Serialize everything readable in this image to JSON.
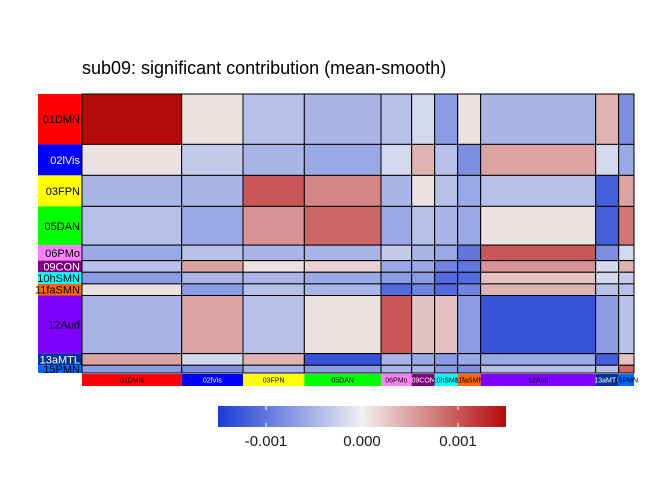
{
  "title": "sub09: significant contribution (mean-smooth)",
  "chart_data": {
    "type": "heatmap",
    "title": "sub09: significant contribution (mean-smooth)",
    "networks": [
      {
        "label": "01DMN",
        "color": "#FF0000",
        "size": 13,
        "text_color": "#000000"
      },
      {
        "label": "02lVis",
        "color": "#0000FF",
        "size": 8,
        "text_color": "#FFFFFF"
      },
      {
        "label": "03FPN",
        "color": "#FFFF00",
        "size": 8,
        "text_color": "#000000"
      },
      {
        "label": "05DAN",
        "color": "#00FF00",
        "size": 10,
        "text_color": "#000000"
      },
      {
        "label": "06PMo",
        "color": "#FF80FF",
        "size": 4,
        "text_color": "#000000"
      },
      {
        "label": "09CON",
        "color": "#800080",
        "size": 3,
        "text_color": "#FFFFFF"
      },
      {
        "label": "10hSMN",
        "color": "#00FFFF",
        "size": 3,
        "text_color": "#000000"
      },
      {
        "label": "11faSMN",
        "color": "#FF6600",
        "size": 3,
        "text_color": "#000000"
      },
      {
        "label": "12Aud",
        "color": "#8000FF",
        "size": 15,
        "text_color": "#000000"
      },
      {
        "label": "13aMTL",
        "color": "#003399",
        "size": 3,
        "text_color": "#FFFFFF"
      },
      {
        "label": "15PMN",
        "color": "#0066FF",
        "size": 2,
        "text_color": "#000000"
      }
    ],
    "column_labels": [
      "01DMN",
      "02lVis",
      "03FPN",
      "05DAN",
      "06PMo",
      "09CON",
      "10hSMN",
      "11faSMN",
      "12Aud",
      "13aMTL",
      "15PMN"
    ],
    "row_labels": [
      "01DMN",
      "02lVis",
      "03FPN",
      "05DAN",
      "06PMo",
      "09CON",
      "10hSMN",
      "11faSMN",
      "12Aud",
      "13aMTL",
      "15PMN"
    ],
    "values": [
      [
        0.0015,
        0.0001,
        -0.0004,
        -0.0005,
        -0.0004,
        -0.0002,
        -0.0007,
        0.0001,
        -0.0005,
        0.0004,
        -0.0008
      ],
      [
        0.0001,
        -0.0003,
        -0.0005,
        -0.0006,
        -0.0002,
        0.0004,
        -0.0004,
        -0.0008,
        0.0005,
        -0.0002,
        -0.0006
      ],
      [
        -0.0005,
        -0.0005,
        0.001,
        0.0007,
        -0.0005,
        0.0001,
        -0.0004,
        -0.0006,
        -0.0004,
        -0.0012,
        0.0005
      ],
      [
        -0.0004,
        -0.0006,
        0.0006,
        0.0009,
        -0.0006,
        -0.0004,
        -0.0005,
        -0.0006,
        0.0001,
        -0.0012,
        0.0008
      ],
      [
        -0.0006,
        -0.0004,
        -0.0005,
        -0.0005,
        -0.0003,
        -0.0005,
        -0.0006,
        -0.001,
        0.001,
        -0.0008,
        -0.0002
      ],
      [
        -0.0004,
        0.0005,
        0.0001,
        0.0002,
        -0.0006,
        -0.0006,
        -0.0009,
        -0.001,
        0.0006,
        -0.0002,
        0.0004
      ],
      [
        -0.0007,
        -0.0005,
        -0.0005,
        -0.0006,
        -0.0007,
        -0.0007,
        -0.0011,
        -0.0011,
        0.0003,
        -0.0002,
        -0.0003
      ],
      [
        0.0001,
        -0.0007,
        -0.0004,
        -0.0005,
        -0.0011,
        -0.0009,
        -0.0011,
        -0.0009,
        0.0004,
        -0.0004,
        -0.0004
      ],
      [
        -0.0005,
        0.0005,
        -0.0004,
        0.0001,
        0.001,
        0.0003,
        0.0003,
        -0.0007,
        -0.0013,
        -0.0007,
        -0.0004
      ],
      [
        0.0005,
        -0.0002,
        0.0004,
        -0.0013,
        -0.0005,
        -0.0006,
        -0.0007,
        -0.0006,
        -0.0006,
        -0.0012,
        0.0003
      ],
      [
        -0.0007,
        -0.0008,
        -0.0005,
        -0.0007,
        -0.0005,
        -0.0005,
        -0.0007,
        -0.0008,
        -0.0004,
        -0.0004,
        0.0009
      ]
    ],
    "colorbar": {
      "min": -0.0015,
      "max": 0.0015,
      "low_color": "#1A3BD6",
      "mid_color": "#F0F0F0",
      "high_color": "#B50A0A",
      "ticks": [
        {
          "value": -0.001,
          "label": "-0.001"
        },
        {
          "value": 0.0,
          "label": "0.000"
        },
        {
          "value": 0.001,
          "label": "0.001"
        }
      ]
    },
    "legend_position": "bottom",
    "grid": false
  }
}
